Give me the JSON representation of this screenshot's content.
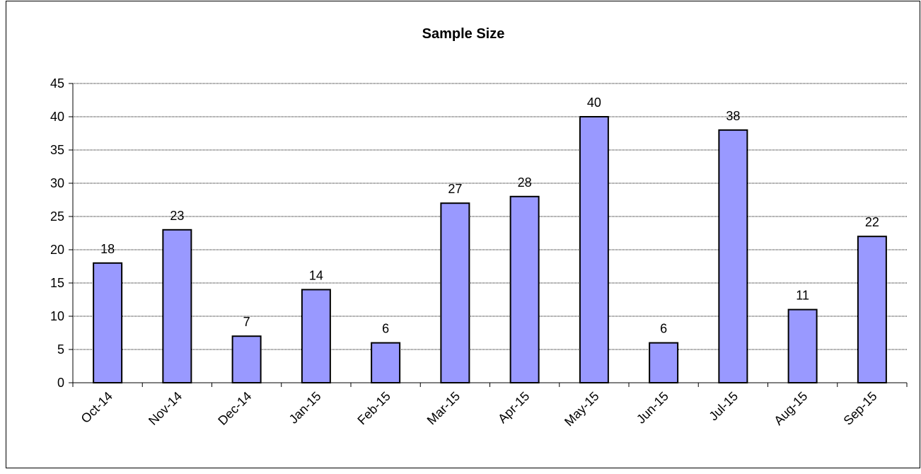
{
  "chart_data": {
    "type": "bar",
    "title": "Sample Size",
    "categories": [
      "Oct-14",
      "Nov-14",
      "Dec-14",
      "Jan-15",
      "Feb-15",
      "Mar-15",
      "Apr-15",
      "May-15",
      "Jun-15",
      "Jul-15",
      "Aug-15",
      "Sep-15"
    ],
    "values": [
      18,
      23,
      7,
      14,
      6,
      27,
      28,
      40,
      6,
      38,
      11,
      22
    ],
    "color": "#9999ff",
    "ylim": [
      0,
      45
    ],
    "yticks": [
      0,
      5,
      10,
      15,
      20,
      25,
      30,
      35,
      40,
      45
    ],
    "grid": true
  }
}
